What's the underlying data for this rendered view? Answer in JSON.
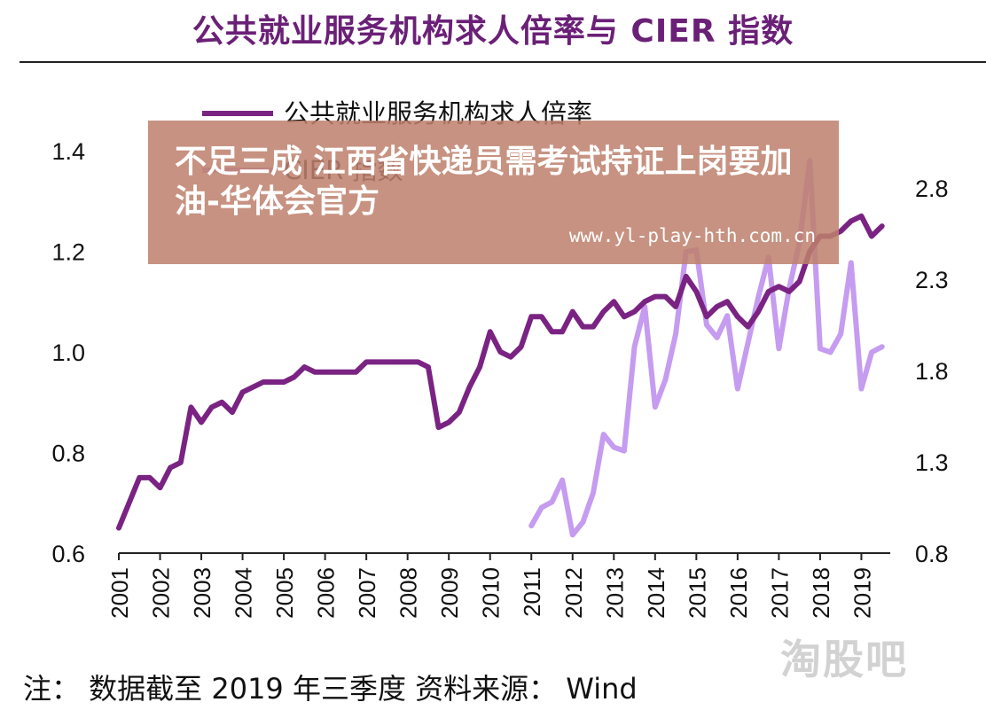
{
  "header": {
    "title": "公共就业服务机构求人倍率与 CIER 指数"
  },
  "footer": {
    "note": "注： 数据截至 2019 年三季度 资料来源： Wind"
  },
  "overlay": {
    "title": "不足三成 江西省快递员需考试持证上岗要加油-华体会官方",
    "url": "www.yl-play-hth.com.cn"
  },
  "watermark": "淘股吧",
  "colors": {
    "series1": "#7a2383",
    "series2": "#c59cf0",
    "axis": "#222222",
    "title": "#6b2077"
  },
  "chart_data": {
    "type": "line",
    "title": "公共就业服务机构求人倍率与 CIER 指数",
    "x_ticks": [
      "2001",
      "2002",
      "2003",
      "2004",
      "2005",
      "2006",
      "2007",
      "2008",
      "2009",
      "2010",
      "2011",
      "2012",
      "2013",
      "2014",
      "2015",
      "2016",
      "2017",
      "2018",
      "2019"
    ],
    "xlim": [
      2001,
      2019.7
    ],
    "y_left": {
      "lim": [
        0.6,
        1.4
      ],
      "ticks": [
        "0.6",
        "0.8",
        "1.0",
        "1.2",
        "1.4"
      ]
    },
    "y_right": {
      "lim": [
        0.8,
        3.0
      ],
      "ticks": [
        "0.8",
        "1.3",
        "1.8",
        "2.3",
        "2.8"
      ]
    },
    "legend": {
      "placement": "top-center"
    },
    "series": [
      {
        "name": "公共就业服务机构求人倍率",
        "axis": "left",
        "x": [
          2001.0,
          2001.5,
          2001.75,
          2002.0,
          2002.25,
          2002.5,
          2002.75,
          2003.0,
          2003.25,
          2003.5,
          2003.75,
          2004.0,
          2004.5,
          2004.75,
          2005.0,
          2005.25,
          2005.5,
          2005.75,
          2006.0,
          2006.75,
          2007.0,
          2007.75,
          2008.0,
          2008.25,
          2008.5,
          2008.75,
          2009.0,
          2009.25,
          2009.5,
          2009.75,
          2010.0,
          2010.25,
          2010.5,
          2010.75,
          2011.0,
          2011.25,
          2011.5,
          2011.75,
          2012.0,
          2012.25,
          2012.5,
          2012.75,
          2013.0,
          2013.25,
          2013.5,
          2013.75,
          2014.0,
          2014.25,
          2014.5,
          2014.75,
          2015.0,
          2015.25,
          2015.5,
          2015.75,
          2016.0,
          2016.25,
          2016.5,
          2016.75,
          2017.0,
          2017.25,
          2017.5,
          2017.75,
          2018.0,
          2018.25,
          2018.5,
          2018.75,
          2019.0,
          2019.25,
          2019.5
        ],
        "values": [
          0.65,
          0.75,
          0.75,
          0.73,
          0.77,
          0.78,
          0.89,
          0.86,
          0.89,
          0.9,
          0.88,
          0.92,
          0.94,
          0.94,
          0.94,
          0.95,
          0.97,
          0.96,
          0.96,
          0.96,
          0.98,
          0.98,
          0.98,
          0.98,
          0.97,
          0.85,
          0.86,
          0.88,
          0.93,
          0.97,
          1.04,
          1.0,
          0.99,
          1.01,
          1.07,
          1.07,
          1.04,
          1.04,
          1.08,
          1.05,
          1.05,
          1.08,
          1.1,
          1.07,
          1.08,
          1.1,
          1.11,
          1.11,
          1.09,
          1.15,
          1.12,
          1.07,
          1.09,
          1.1,
          1.07,
          1.05,
          1.08,
          1.12,
          1.13,
          1.12,
          1.14,
          1.2,
          1.23,
          1.23,
          1.24,
          1.26,
          1.27,
          1.23,
          1.25
        ]
      },
      {
        "name": "CIER 指数",
        "axis": "right",
        "x": [
          2011.0,
          2011.25,
          2011.5,
          2011.75,
          2012.0,
          2012.25,
          2012.5,
          2012.75,
          2013.0,
          2013.25,
          2013.5,
          2013.75,
          2014.0,
          2014.25,
          2014.5,
          2014.75,
          2015.0,
          2015.25,
          2015.5,
          2015.75,
          2016.0,
          2016.25,
          2016.5,
          2016.75,
          2017.0,
          2017.25,
          2017.5,
          2017.75,
          2018.0,
          2018.25,
          2018.5,
          2018.75,
          2019.0,
          2019.25,
          2019.5
        ],
        "values": [
          0.95,
          1.05,
          1.08,
          1.2,
          0.9,
          0.97,
          1.13,
          1.45,
          1.38,
          1.36,
          1.93,
          2.15,
          1.6,
          1.75,
          2.0,
          2.45,
          2.46,
          2.05,
          1.98,
          2.1,
          1.7,
          1.95,
          2.2,
          2.42,
          1.92,
          2.25,
          2.5,
          2.95,
          1.92,
          1.9,
          2.0,
          2.39,
          1.7,
          1.9,
          1.93
        ]
      }
    ]
  }
}
